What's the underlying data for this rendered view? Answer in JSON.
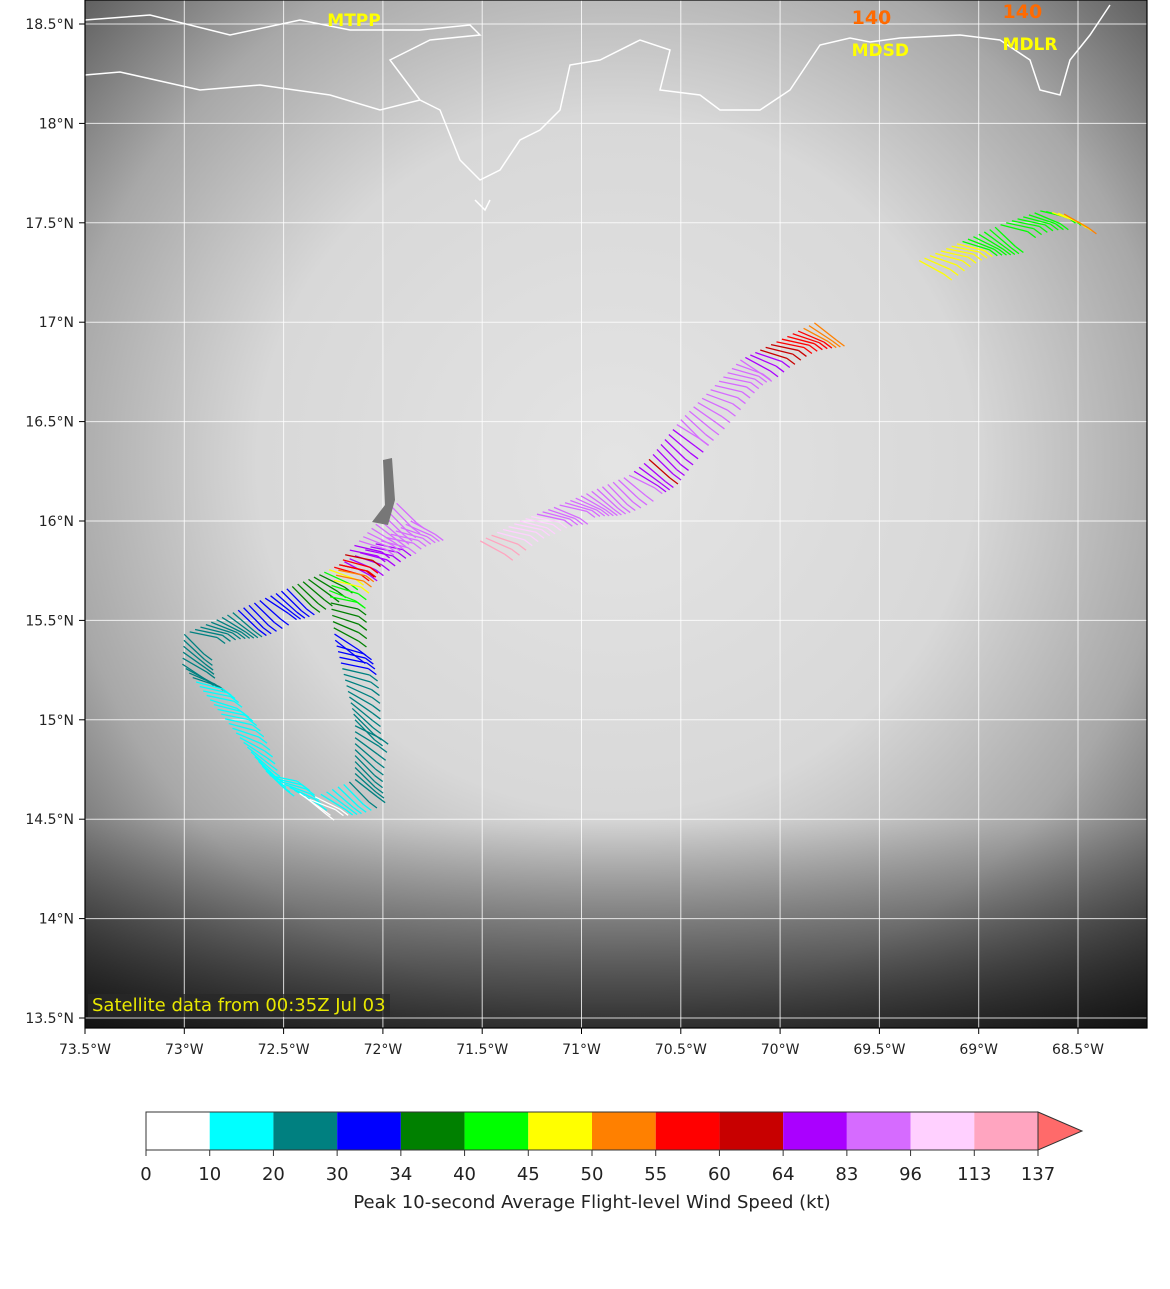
{
  "map": {
    "lat_ticks": [
      "18.5°N",
      "18°N",
      "17.5°N",
      "17°N",
      "16.5°N",
      "16°N",
      "15.5°N",
      "15°N",
      "14.5°N",
      "14°N",
      "13.5°N"
    ],
    "lat_values": [
      18.5,
      18,
      17.5,
      17,
      16.5,
      16,
      15.5,
      15,
      14.5,
      14,
      13.5
    ],
    "lon_ticks": [
      "73.5°W",
      "73°W",
      "72.5°W",
      "72°W",
      "71.5°W",
      "71°W",
      "70.5°W",
      "70°W",
      "69.5°W",
      "69°W",
      "68.5°W"
    ],
    "lon_values": [
      -73.5,
      -73,
      -72.5,
      -72,
      -71.5,
      -71,
      -70.5,
      -70,
      -69.5,
      -69,
      -68.5
    ],
    "satellite_note": "Satellite data from 00:35Z Jul 03",
    "stations": [
      {
        "id": "MTPP",
        "lon": -72.28,
        "lat": 18.49,
        "value": ""
      },
      {
        "id": "MDSD",
        "lon": -69.64,
        "lat": 18.34,
        "value": "140"
      },
      {
        "id": "MDLR",
        "lon": -68.88,
        "lat": 18.37,
        "value": "140"
      }
    ],
    "flight_segments": [
      [
        [
          -71.86,
          16.0,
          83
        ],
        [
          -72.01,
          15.9,
          84
        ],
        [
          -72.22,
          15.78,
          62
        ],
        [
          -72.32,
          15.73,
          36
        ],
        [
          -72.62,
          15.6,
          32
        ],
        [
          -73.0,
          15.43,
          25
        ],
        [
          -73.01,
          15.28,
          24
        ],
        [
          -72.87,
          15.1,
          15
        ],
        [
          -72.57,
          14.72,
          14
        ],
        [
          -72.37,
          14.6,
          8
        ],
        [
          -72.14,
          14.7,
          22
        ],
        [
          -72.14,
          15.0,
          26
        ],
        [
          -72.24,
          15.4,
          32
        ],
        [
          -72.27,
          15.65,
          42
        ],
        [
          -72.19,
          15.83,
          62
        ],
        [
          -72.12,
          15.9,
          85
        ],
        [
          -71.91,
          16.11,
          86
        ]
      ],
      [
        [
          -71.51,
          15.9,
          120
        ],
        [
          -71.31,
          16.0,
          100
        ],
        [
          -71.11,
          16.08,
          88
        ],
        [
          -70.76,
          16.23,
          85
        ],
        [
          -70.66,
          16.31,
          62
        ],
        [
          -70.5,
          16.51,
          86
        ],
        [
          -70.2,
          16.81,
          88
        ],
        [
          -70.1,
          16.86,
          62
        ],
        [
          -69.8,
          17.01,
          52
        ]
      ],
      [
        [
          -69.3,
          17.31,
          47
        ],
        [
          -68.89,
          17.49,
          43
        ],
        [
          -68.69,
          17.56,
          42
        ],
        [
          -68.54,
          17.54,
          52
        ]
      ]
    ]
  },
  "colorbar": {
    "title": "Peak 10-second Average Flight-level Wind Speed (kt)",
    "bounds": [
      "0",
      "10",
      "20",
      "30",
      "34",
      "40",
      "45",
      "50",
      "55",
      "60",
      "64",
      "83",
      "96",
      "113",
      "137"
    ],
    "bound_values": [
      0,
      10,
      20,
      30,
      34,
      40,
      45,
      50,
      55,
      60,
      64,
      83,
      96,
      113,
      137
    ],
    "colors": [
      "#ffffff",
      "#00ffff",
      "#008080",
      "#0000ff",
      "#008000",
      "#00ff00",
      "#ffff00",
      "#ff8000",
      "#ff0000",
      "#c80000",
      "#aa00ff",
      "#d66bff",
      "#ffd0ff",
      "#ffa5c0"
    ],
    "extend_color": "#ff6a6a"
  }
}
